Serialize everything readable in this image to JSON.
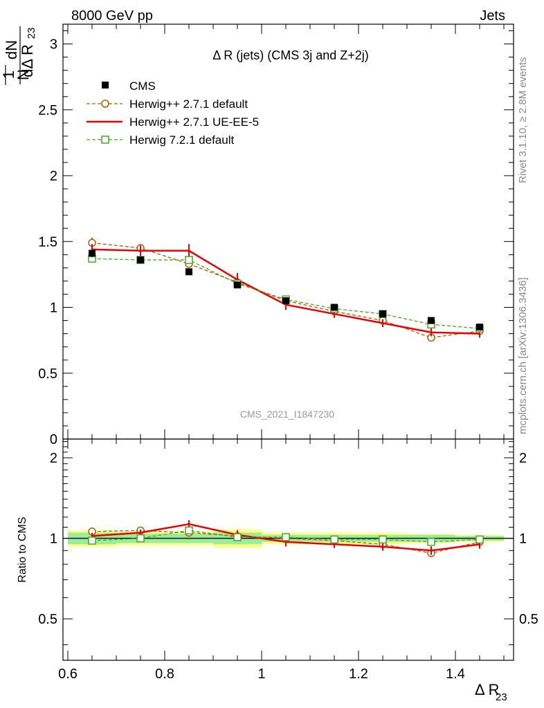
{
  "header": {
    "left": "8000 GeV pp",
    "right": "Jets"
  },
  "side_texts": {
    "rivet": "Rivet 3.1.10, ≥ 2.8M events",
    "mcplots": "mcplots.cern.ch [arXiv:1306.3436]"
  },
  "chart_data": {
    "type": "scatter",
    "title": "Δ R (jets) (CMS 3j and Z+2j)",
    "watermark": "CMS_2021_I1847230",
    "ylabel_num": "dN",
    "ylabel_den": "dΔ R",
    "ylabel_den_sub": "23",
    "ylabel_prefix_num": "1",
    "ylabel_prefix_den": "N",
    "xlabel": "Δ R",
    "xlabel_sub": "23",
    "ratio_ylabel": "Ratio to CMS",
    "x": [
      0.65,
      0.75,
      0.85,
      0.95,
      1.05,
      1.15,
      1.25,
      1.35,
      1.45
    ],
    "xlim": [
      0.59,
      1.52
    ],
    "ylim_main": [
      0,
      3.15
    ],
    "ylim_ratio": [
      0.35,
      2.35
    ],
    "main_ticks": [
      "0",
      "0.5",
      "1",
      "1.5",
      "2",
      "2.5",
      "3"
    ],
    "main_tick_values": [
      0,
      0.5,
      1,
      1.5,
      2,
      2.5,
      3
    ],
    "ratio_ticks": [
      "0.5",
      "1",
      "2"
    ],
    "ratio_tick_values": [
      0.5,
      1,
      2
    ],
    "x_ticks": [
      "0.6",
      "0.8",
      "1",
      "1.2",
      "1.4"
    ],
    "x_tick_values": [
      0.6,
      0.8,
      1.0,
      1.2,
      1.4
    ],
    "data": {
      "name": "CMS",
      "values": [
        1.41,
        1.36,
        1.27,
        1.17,
        1.05,
        1.0,
        0.95,
        0.9,
        0.85
      ],
      "errors": [
        0.03,
        0.02,
        0.02,
        0.02,
        0.02,
        0.02,
        0.02,
        0.02,
        0.02
      ]
    },
    "data_band_inner": [
      0.05,
      0.04,
      0.04,
      0.05,
      0.03,
      0.03,
      0.03,
      0.03,
      0.02
    ],
    "data_band_outer": [
      0.07,
      0.06,
      0.06,
      0.08,
      0.05,
      0.05,
      0.05,
      0.04,
      0.03
    ],
    "series": [
      {
        "name": "Herwig++ 2.7.1 default",
        "color": "#b35900",
        "marker": "circle",
        "dashed": true,
        "values": [
          1.49,
          1.45,
          1.33,
          1.19,
          1.05,
          0.97,
          0.9,
          0.77,
          0.82
        ],
        "errors": [
          0.04,
          0.03,
          0.03,
          0.03,
          0.02,
          0.02,
          0.02,
          0.02,
          0.02
        ],
        "ratio": [
          1.06,
          1.07,
          1.05,
          1.02,
          1.0,
          0.98,
          0.95,
          0.88,
          0.97
        ]
      },
      {
        "name": "Herwig++ 2.7.1 UE-EE-5",
        "color": "#ee0000",
        "marker": "none",
        "dashed": false,
        "values": [
          1.44,
          1.43,
          1.43,
          1.21,
          1.02,
          0.95,
          0.88,
          0.81,
          0.8
        ],
        "errors": [
          0.04,
          0.04,
          0.05,
          0.05,
          0.04,
          0.03,
          0.03,
          0.03,
          0.03
        ],
        "ratio": [
          1.02,
          1.05,
          1.13,
          1.03,
          0.97,
          0.95,
          0.93,
          0.9,
          0.95
        ]
      },
      {
        "name": "Herwig 7.2.1 default",
        "color": "#44aa22",
        "marker": "square",
        "dashed": true,
        "values": [
          1.37,
          1.36,
          1.36,
          1.18,
          1.06,
          0.99,
          0.95,
          0.87,
          0.84
        ],
        "errors": [
          0.02,
          0.02,
          0.02,
          0.02,
          0.02,
          0.02,
          0.02,
          0.02,
          0.02
        ],
        "ratio": [
          0.98,
          1.0,
          1.07,
          1.01,
          1.01,
          0.99,
          0.99,
          0.97,
          0.99
        ]
      }
    ]
  }
}
